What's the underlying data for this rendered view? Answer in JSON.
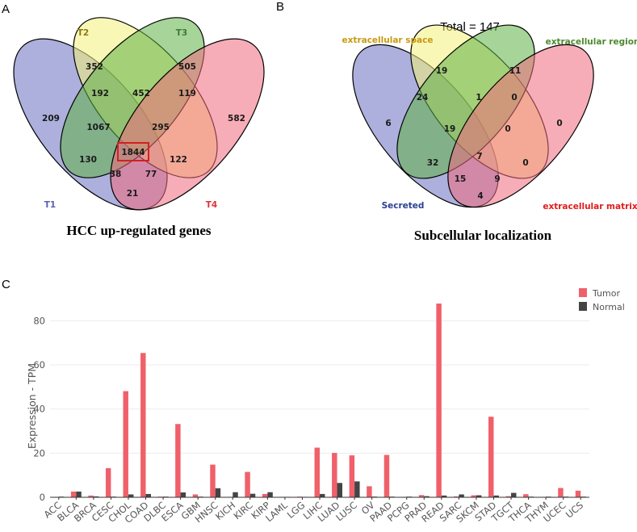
{
  "panels": {
    "a": "A",
    "b": "B",
    "c": "C"
  },
  "venn_a": {
    "caption": "HCC up-regulated genes",
    "sets": [
      {
        "label": "T1",
        "color": "#5b5fb3"
      },
      {
        "label": "T2",
        "color": "#8d7b10"
      },
      {
        "label": "T3",
        "color": "#3f7a36"
      },
      {
        "label": "T4",
        "color": "#e0323a"
      }
    ],
    "regions": {
      "t1": "209",
      "t2": "352",
      "t3": "505",
      "t4": "582",
      "t1t2": "192",
      "t2t3": "452",
      "t3t4": "119",
      "t1t4": "21",
      "t1t2t3": "1067",
      "t2t3t4": "295",
      "t1t3": "130",
      "t2t4": "122",
      "t1t3t4": "38",
      "t1t2t4": "77",
      "all": "1844"
    },
    "highlight_color": "#d42020"
  },
  "venn_b": {
    "caption": "Subcellular localization",
    "total": "Total = 147",
    "sets": [
      {
        "label": "Secreted",
        "color": "#2a3f91"
      },
      {
        "label": "extracellular space",
        "color": "#c89a10"
      },
      {
        "label": "extracellular region",
        "color": "#4d8a30"
      },
      {
        "label": "extracellular matrix",
        "color": "#e01c1c"
      }
    ],
    "regions": {
      "t1": "6",
      "t2": "19",
      "t3": "11",
      "t4": "0",
      "t1t2": "24",
      "t2t3": "1",
      "t3t4": "0",
      "t1t4": "4",
      "t1t2t3": "19",
      "t2t3t4": "0",
      "t1t3": "32",
      "t2t4": "0",
      "t1t3t4": "15",
      "t1t2t4": "9",
      "all": "7"
    }
  },
  "chart_data": {
    "type": "bar",
    "title": "",
    "xlabel": "",
    "ylabel": "Expression - TPM",
    "ylim": [
      0,
      90
    ],
    "yticks": [
      0,
      20,
      40,
      60,
      80
    ],
    "grid": true,
    "legend_position": "top-right",
    "categories": [
      "ACC",
      "BLCA",
      "BRCA",
      "CESC",
      "CHOL",
      "COAD",
      "DLBC",
      "ESCA",
      "GBM",
      "HNSC",
      "KICH",
      "KIRC",
      "KIRP",
      "LAML",
      "LGG",
      "LIHC",
      "LUAD",
      "LUSC",
      "OV",
      "PAAD",
      "PCPG",
      "PRAD",
      "READ",
      "SARC",
      "SKCM",
      "STAD",
      "TGCT",
      "THCA",
      "THYM",
      "UCEC",
      "UCS"
    ],
    "series": [
      {
        "name": "Tumor",
        "color": "#f0606a",
        "values": [
          0.2,
          2.6,
          0.8,
          13.2,
          48.1,
          65.4,
          0.3,
          33.2,
          1.3,
          14.8,
          0.2,
          11.5,
          1.5,
          0.2,
          0.3,
          22.5,
          20.1,
          19.0,
          5.0,
          19.2,
          0.2,
          1.0,
          87.8,
          0.4,
          0.9,
          36.5,
          0.5,
          1.4,
          0.2,
          4.2,
          3.0
        ]
      },
      {
        "name": "Normal",
        "color": "#444444",
        "values": [
          0.3,
          2.6,
          0.4,
          0.3,
          1.3,
          1.5,
          0.3,
          2.2,
          0.3,
          4.1,
          2.3,
          1.6,
          2.3,
          0.2,
          0.2,
          1.5,
          6.5,
          7.2,
          0.3,
          0.3,
          0.3,
          0.5,
          0.8,
          1.3,
          0.9,
          0.8,
          2.0,
          0.3,
          0.3,
          0.3,
          0.3
        ]
      }
    ]
  }
}
